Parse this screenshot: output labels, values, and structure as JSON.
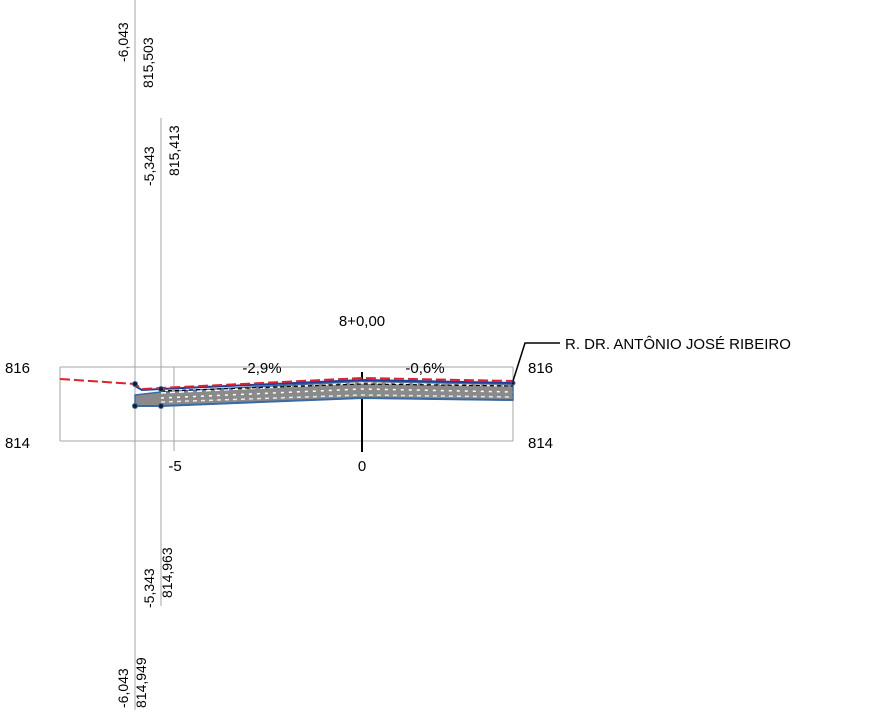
{
  "section": {
    "station": "8+0,00",
    "road_name": "R. DR. ANTÔNIO JOSÉ RIBEIRO",
    "slopes": {
      "left": "-2,9%",
      "right": "-0,6%"
    }
  },
  "axes": {
    "y_labels_left": [
      "816",
      "814"
    ],
    "y_labels_right": [
      "816",
      "814"
    ],
    "x_labels": [
      "-5",
      "0"
    ]
  },
  "offset_markers": {
    "top_outer": {
      "offset": "-6,043",
      "elevation": "815,503"
    },
    "top_inner": {
      "offset": "-5,343",
      "elevation": "815,413"
    },
    "bottom_inner": {
      "offset": "-5,343",
      "elevation": "814,963"
    },
    "bottom_outer": {
      "offset": "-6,043",
      "elevation": "814,949"
    }
  },
  "colors": {
    "frame": "#a6a6a6",
    "terrain_red": "#e0202a",
    "design_blue": "#1f3fa0",
    "layer_fill": "#8a8a8a",
    "layer_outline": "#3a6aa0",
    "axis": "#000000"
  }
}
